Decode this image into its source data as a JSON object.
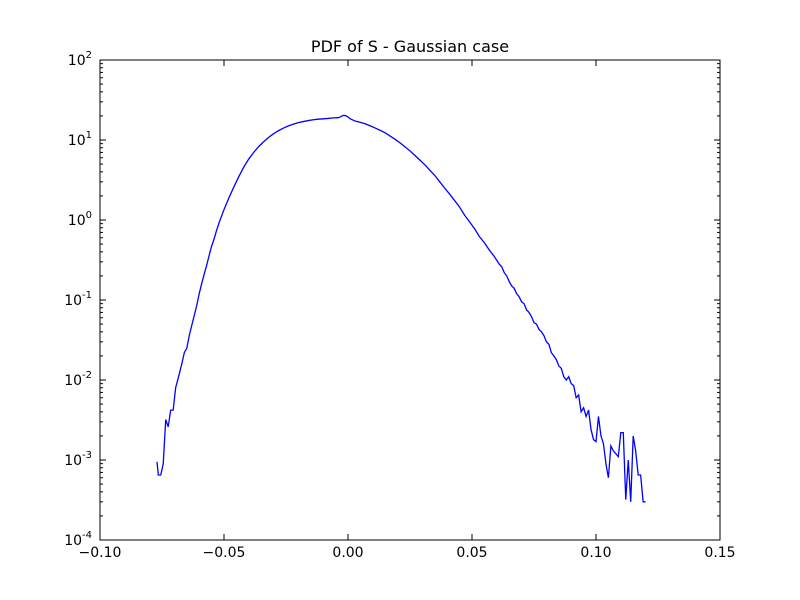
{
  "chart_data": {
    "type": "line",
    "title": "PDF of S - Gaussian case",
    "xlabel": "",
    "ylabel": "",
    "xlim": [
      -0.1,
      0.15
    ],
    "ylim": [
      0.0001,
      100
    ],
    "yscale": "log",
    "grid": false,
    "x_ticks": [
      {
        "value": -0.1,
        "label": "−0.10"
      },
      {
        "value": -0.05,
        "label": "−0.05"
      },
      {
        "value": 0.0,
        "label": "0.00"
      },
      {
        "value": 0.05,
        "label": "0.05"
      },
      {
        "value": 0.1,
        "label": "0.10"
      },
      {
        "value": 0.15,
        "label": "0.15"
      }
    ],
    "y_ticks": [
      {
        "value": 100,
        "base": "10",
        "exp": "2"
      },
      {
        "value": 10,
        "base": "10",
        "exp": "1"
      },
      {
        "value": 1,
        "base": "10",
        "exp": "0"
      },
      {
        "value": 0.1,
        "base": "10",
        "exp": "-1"
      },
      {
        "value": 0.01,
        "base": "10",
        "exp": "-2"
      },
      {
        "value": 0.001,
        "base": "10",
        "exp": "-3"
      },
      {
        "value": 0.0001,
        "base": "10",
        "exp": "-4"
      }
    ],
    "series": [
      {
        "color": "#0000ff",
        "points": [
          [
            -0.077,
            0.00095
          ],
          [
            -0.0765,
            0.00065
          ],
          [
            -0.0755,
            0.00065
          ],
          [
            -0.0745,
            0.0009
          ],
          [
            -0.0735,
            0.0032
          ],
          [
            -0.0725,
            0.0026
          ],
          [
            -0.0715,
            0.0042
          ],
          [
            -0.0705,
            0.0042
          ],
          [
            -0.0695,
            0.008
          ],
          [
            -0.068,
            0.012
          ],
          [
            -0.067,
            0.016
          ],
          [
            -0.066,
            0.022
          ],
          [
            -0.065,
            0.025
          ],
          [
            -0.064,
            0.036
          ],
          [
            -0.063,
            0.048
          ],
          [
            -0.062,
            0.064
          ],
          [
            -0.061,
            0.085
          ],
          [
            -0.06,
            0.12
          ],
          [
            -0.059,
            0.16
          ],
          [
            -0.058,
            0.21
          ],
          [
            -0.057,
            0.27
          ],
          [
            -0.056,
            0.36
          ],
          [
            -0.055,
            0.47
          ],
          [
            -0.054,
            0.58
          ],
          [
            -0.053,
            0.74
          ],
          [
            -0.052,
            0.92
          ],
          [
            -0.05,
            1.35
          ],
          [
            -0.048,
            1.9
          ],
          [
            -0.046,
            2.6
          ],
          [
            -0.044,
            3.5
          ],
          [
            -0.042,
            4.6
          ],
          [
            -0.04,
            5.8
          ],
          [
            -0.038,
            7.0
          ],
          [
            -0.036,
            8.3
          ],
          [
            -0.034,
            9.5
          ],
          [
            -0.032,
            10.8
          ],
          [
            -0.03,
            12.0
          ],
          [
            -0.028,
            13.1
          ],
          [
            -0.026,
            14.1
          ],
          [
            -0.024,
            15.0
          ],
          [
            -0.022,
            15.8
          ],
          [
            -0.02,
            16.5
          ],
          [
            -0.018,
            17.0
          ],
          [
            -0.016,
            17.5
          ],
          [
            -0.014,
            17.9
          ],
          [
            -0.012,
            18.2
          ],
          [
            -0.01,
            18.4
          ],
          [
            -0.008,
            18.6
          ],
          [
            -0.006,
            18.9
          ],
          [
            -0.004,
            19.0
          ],
          [
            -0.003,
            19.5
          ],
          [
            -0.002,
            20.3
          ],
          [
            -0.001,
            20.2
          ],
          [
            0.0,
            19.4
          ],
          [
            0.001,
            18.3
          ],
          [
            0.003,
            17.2
          ],
          [
            0.005,
            16.6
          ],
          [
            0.007,
            15.9
          ],
          [
            0.009,
            15.0
          ],
          [
            0.011,
            14.1
          ],
          [
            0.013,
            13.2
          ],
          [
            0.015,
            12.3
          ],
          [
            0.017,
            11.2
          ],
          [
            0.019,
            10.2
          ],
          [
            0.021,
            9.2
          ],
          [
            0.023,
            8.2
          ],
          [
            0.025,
            7.3
          ],
          [
            0.027,
            6.4
          ],
          [
            0.029,
            5.6
          ],
          [
            0.031,
            4.9
          ],
          [
            0.033,
            4.2
          ],
          [
            0.035,
            3.6
          ],
          [
            0.037,
            3.0
          ],
          [
            0.039,
            2.5
          ],
          [
            0.041,
            2.1
          ],
          [
            0.043,
            1.75
          ],
          [
            0.045,
            1.45
          ],
          [
            0.047,
            1.15
          ],
          [
            0.049,
            0.95
          ],
          [
            0.051,
            0.78
          ],
          [
            0.053,
            0.62
          ],
          [
            0.055,
            0.52
          ],
          [
            0.057,
            0.42
          ],
          [
            0.059,
            0.35
          ],
          [
            0.061,
            0.28
          ],
          [
            0.062,
            0.26
          ],
          [
            0.063,
            0.22
          ],
          [
            0.064,
            0.2
          ],
          [
            0.065,
            0.17
          ],
          [
            0.066,
            0.15
          ],
          [
            0.067,
            0.14
          ],
          [
            0.068,
            0.12
          ],
          [
            0.069,
            0.11
          ],
          [
            0.07,
            0.095
          ],
          [
            0.071,
            0.09
          ],
          [
            0.072,
            0.075
          ],
          [
            0.073,
            0.07
          ],
          [
            0.074,
            0.062
          ],
          [
            0.075,
            0.052
          ],
          [
            0.076,
            0.05
          ],
          [
            0.077,
            0.043
          ],
          [
            0.078,
            0.04
          ],
          [
            0.079,
            0.036
          ],
          [
            0.08,
            0.03
          ],
          [
            0.081,
            0.028
          ],
          [
            0.082,
            0.022
          ],
          [
            0.083,
            0.02
          ],
          [
            0.084,
            0.018
          ],
          [
            0.085,
            0.015
          ],
          [
            0.086,
            0.014
          ],
          [
            0.087,
            0.011
          ],
          [
            0.088,
            0.01
          ],
          [
            0.089,
            0.011
          ],
          [
            0.09,
            0.009
          ],
          [
            0.091,
            0.0085
          ],
          [
            0.092,
            0.006
          ],
          [
            0.093,
            0.0065
          ],
          [
            0.094,
            0.004
          ],
          [
            0.095,
            0.0045
          ],
          [
            0.096,
            0.0035
          ],
          [
            0.097,
            0.0042
          ],
          [
            0.098,
            0.0024
          ],
          [
            0.099,
            0.0018
          ],
          [
            0.1,
            0.0017
          ],
          [
            0.101,
            0.0035
          ],
          [
            0.102,
            0.002
          ],
          [
            0.103,
            0.0016
          ],
          [
            0.104,
            0.0009
          ],
          [
            0.105,
            0.0006
          ],
          [
            0.106,
            0.0015
          ],
          [
            0.107,
            0.0013
          ],
          [
            0.108,
            0.0012
          ],
          [
            0.109,
            0.0011
          ],
          [
            0.11,
            0.0022
          ],
          [
            0.111,
            0.0022
          ],
          [
            0.112,
            0.00032
          ],
          [
            0.113,
            0.001
          ],
          [
            0.114,
            0.0003
          ],
          [
            0.115,
            0.002
          ],
          [
            0.116,
            0.0013
          ],
          [
            0.117,
            0.00065
          ],
          [
            0.118,
            0.00065
          ],
          [
            0.119,
            0.0003
          ],
          [
            0.12,
            0.0003
          ]
        ]
      }
    ]
  }
}
